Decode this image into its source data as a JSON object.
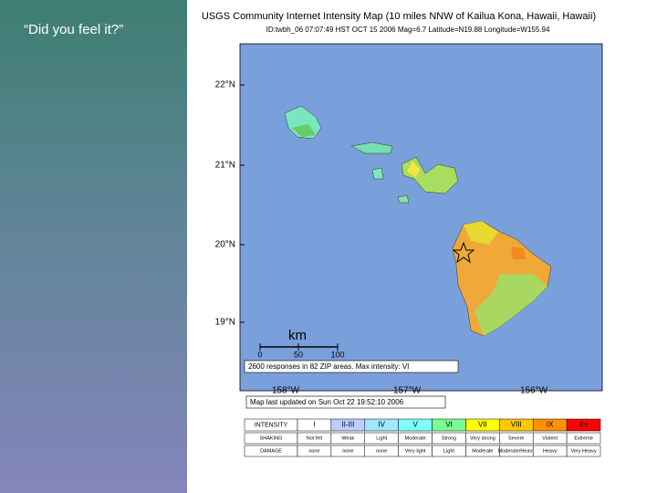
{
  "slide": {
    "caption": "“Did you feel it?”"
  },
  "header": {
    "title": "USGS Community Internet Intensity Map (10 miles NNW of Kailua Kona, Hawaii, Hawaii)",
    "subtitle": "ID:twbh_06 07:07:49 HST OCT 15 2006 Mag=6.7 Latitude=N19.88 Longitude=W155.94"
  },
  "map": {
    "lat_labels": [
      "22°N",
      "21°N",
      "20°N",
      "19°N"
    ],
    "lon_labels": [
      "158°W",
      "157°W",
      "156°W"
    ],
    "scale": {
      "unit": "km",
      "ticks": [
        "0",
        "50",
        "100"
      ]
    },
    "responses": "2600 responses in 82 ZIP areas. Max intensity: VI",
    "updated": "Map last updated on Sun Oct 22 19:52:10 2006"
  },
  "legend": {
    "row_labels": [
      "INTENSITY",
      "SHAKING",
      "DAMAGE"
    ],
    "intensity": [
      "I",
      "II-III",
      "IV",
      "V",
      "VI",
      "VII",
      "VIII",
      "IX",
      "X+"
    ],
    "shaking": [
      "Not felt",
      "Weak",
      "Light",
      "Moderate",
      "Strong",
      "Very strong",
      "Severe",
      "Violent",
      "Extreme"
    ],
    "damage": [
      "none",
      "none",
      "none",
      "Very light",
      "Light",
      "Moderate",
      "Moderate/Heavy",
      "Heavy",
      "Very Heavy"
    ]
  }
}
